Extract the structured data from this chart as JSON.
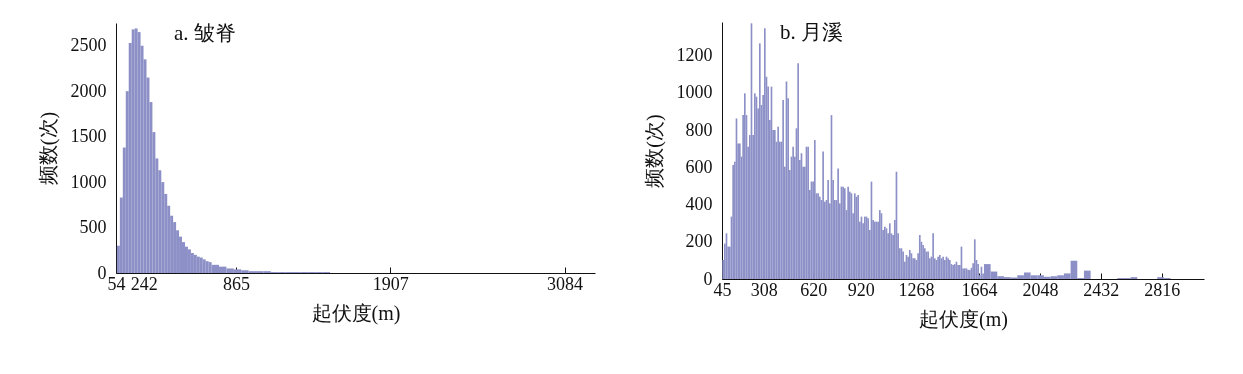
{
  "chart_data": [
    {
      "type": "histogram",
      "title": "a. 皱脊",
      "xlabel": "起伏度(m)",
      "ylabel": "频数(次)",
      "color": "#8c90c6",
      "bins": [
        60,
        80,
        100,
        120,
        140,
        160,
        180,
        200,
        220,
        240,
        260,
        280,
        300,
        320,
        340,
        360,
        380,
        400,
        420,
        440,
        460,
        480,
        500,
        520,
        540,
        560,
        580,
        600,
        620,
        640,
        660,
        680,
        700,
        750,
        800,
        850,
        900,
        950,
        1000,
        1050,
        1100,
        1150,
        1200,
        1250,
        1300,
        1350,
        1400,
        1450,
        1500
      ],
      "values": [
        300,
        830,
        1380,
        2000,
        2530,
        2680,
        2690,
        2650,
        2500,
        2350,
        2150,
        1880,
        1550,
        1260,
        1130,
        1000,
        870,
        740,
        630,
        560,
        470,
        400,
        340,
        290,
        260,
        220,
        200,
        180,
        170,
        150,
        130,
        120,
        90,
        70,
        50,
        40,
        30,
        20,
        20,
        20,
        10,
        10,
        10,
        10,
        10,
        10,
        10,
        10
      ],
      "xlim": [
        54,
        3290
      ],
      "ylim": [
        0,
        2750
      ],
      "xticks": [
        54,
        242,
        865,
        1907,
        3084
      ],
      "yticks": [
        0,
        500,
        1000,
        1500,
        2000,
        2500
      ]
    },
    {
      "type": "histogram",
      "title": "b. 月溪",
      "xlabel": "起伏度(m)",
      "ylabel": "频数(次)",
      "color": "#8c90c6",
      "bins": [
        47,
        57.5,
        68,
        78.5,
        89,
        99.5,
        110,
        120.5,
        131,
        141.5,
        152,
        162.5,
        173,
        183.5,
        194,
        204.5,
        215,
        225.5,
        236,
        246.5,
        257,
        267.5,
        278,
        288.5,
        299,
        309.5,
        320,
        330.5,
        341,
        351.5,
        362,
        372.5,
        383,
        393.5,
        404,
        414.5,
        425,
        435.5,
        446,
        456.5,
        467,
        477.5,
        488,
        498.5,
        509,
        519.5,
        530,
        540.5,
        551,
        561.5,
        572,
        582.5,
        593,
        603.5,
        614,
        624.5,
        635,
        645.5,
        656,
        666.5,
        677,
        687.5,
        698,
        708.5,
        719,
        729.5,
        740,
        750.5,
        761,
        771.5,
        782,
        792.5,
        803,
        813.5,
        824,
        834.5,
        845,
        855.5,
        866,
        876.5,
        887,
        897.5,
        908,
        918.5,
        929,
        939.5,
        950,
        960.5,
        971,
        981.5,
        992,
        1002.5,
        1013,
        1023.5,
        1034,
        1044.5,
        1055,
        1065.5,
        1076,
        1086.5,
        1097,
        1107.5,
        1118,
        1128.5,
        1139,
        1149.5,
        1160,
        1170.5,
        1181,
        1191.5,
        1202,
        1212.5,
        1223,
        1233.5,
        1244,
        1254.5,
        1265,
        1275.5,
        1286,
        1296.5,
        1307,
        1317.5,
        1328,
        1338.5,
        1349,
        1359.5,
        1370,
        1380.5,
        1391,
        1401.5,
        1412,
        1422.5,
        1433,
        1443.5,
        1454,
        1464.5,
        1475,
        1485.5,
        1496,
        1506.5,
        1517,
        1527.5,
        1538,
        1548.5,
        1559,
        1569.5,
        1580,
        1590.5,
        1601,
        1611.5,
        1622,
        1632.5,
        1643,
        1653.5,
        1664,
        1674.5,
        1685,
        1695.5,
        1737.5,
        1779.5,
        1821.5,
        1863.5,
        1905.5,
        1947.5,
        1989.5,
        2031.5,
        2073.5,
        2115.5,
        2157.5,
        2199.5,
        2241.5,
        2283.5,
        2325.5,
        2367.5,
        2535.5,
        2577.5,
        2619.5,
        2661.5,
        2787.5,
        2829.5,
        2871.5
      ],
      "values": [
        102,
        190,
        245,
        174,
        174,
        335,
        612,
        630,
        862,
        728,
        728,
        657,
        880,
        997,
        880,
        710,
        773,
        1373,
        773,
        997,
        979,
        916,
        1265,
        934,
        988,
        1346,
        1086,
        1033,
        854,
        1033,
        800,
        800,
        737,
        818,
        737,
        737,
        961,
        603,
        1060,
        970,
        585,
        657,
        710,
        657,
        809,
        1158,
        639,
        675,
        603,
        603,
        710,
        710,
        478,
        523,
        523,
        746,
        460,
        460,
        442,
        424,
        684,
        415,
        424,
        532,
        406,
        880,
        532,
        424,
        424,
        594,
        406,
        496,
        496,
        487,
        370,
        496,
        469,
        460,
        353,
        460,
        442,
        451,
        308,
        335,
        299,
        335,
        335,
        326,
        263,
        523,
        317,
        308,
        308,
        308,
        370,
        353,
        263,
        281,
        272,
        245,
        299,
        245,
        236,
        317,
        576,
        245,
        165,
        165,
        147,
        93,
        129,
        120,
        156,
        138,
        111,
        111,
        102,
        138,
        236,
        200,
        183,
        165,
        147,
        147,
        111,
        120,
        245,
        111,
        102,
        120,
        129,
        111,
        120,
        102,
        120,
        111,
        102,
        80,
        75,
        80,
        93,
        75,
        75,
        174,
        57,
        57,
        57,
        50,
        48,
        60,
        84,
        213,
        102,
        80,
        21,
        66,
        30,
        80,
        40,
        15,
        10,
        8,
        20,
        35,
        20,
        20,
        12,
        15,
        20,
        30,
        98,
        5,
        45,
        0,
        5,
        5,
        10,
        0,
        10,
        5
      ],
      "xlim": [
        45,
        3082
      ],
      "ylim": [
        0,
        1380
      ],
      "xticks": [
        45,
        308,
        620,
        920,
        1268,
        1664,
        2048,
        2432,
        2816
      ],
      "yticks": [
        0,
        200,
        400,
        600,
        800,
        1000,
        1200
      ]
    }
  ]
}
